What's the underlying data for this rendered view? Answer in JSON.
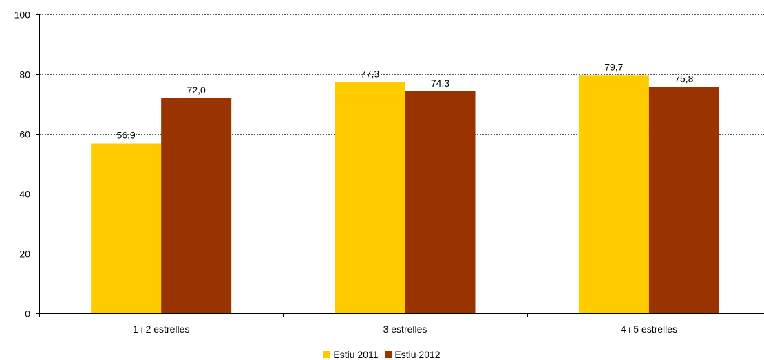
{
  "chart_data": {
    "type": "bar",
    "categories": [
      "1 i 2 estrelles",
      "3 estrelles",
      "4 i 5 estrelles"
    ],
    "series": [
      {
        "name": "Estiu 2011",
        "values": [
          56.9,
          77.3,
          79.7
        ],
        "labels": [
          "56,9",
          "77,3",
          "79,7"
        ],
        "color": "#ffcc00"
      },
      {
        "name": "Estiu 2012",
        "values": [
          72.0,
          74.3,
          75.8
        ],
        "labels": [
          "72,0",
          "74,3",
          "75,8"
        ],
        "color": "#993300"
      }
    ],
    "y_ticks": [
      "0",
      "20",
      "40",
      "60",
      "80",
      "100"
    ],
    "ylim": [
      0,
      100
    ],
    "title": "",
    "xlabel": "",
    "ylabel": "",
    "grid": true,
    "legend_position": "bottom"
  }
}
